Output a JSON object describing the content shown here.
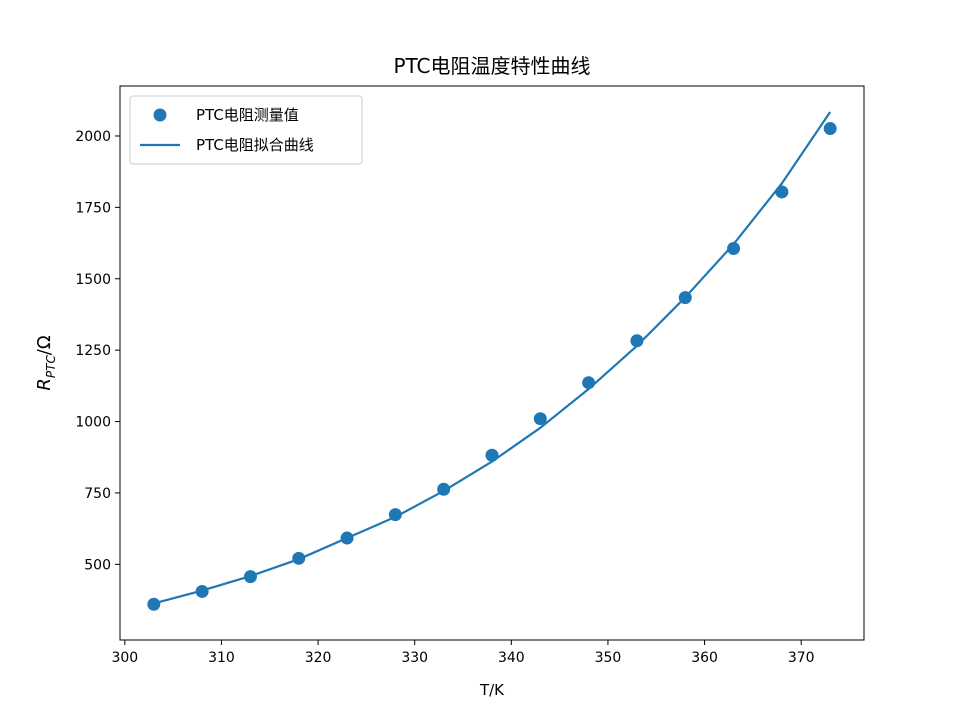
{
  "chart_data": {
    "type": "scatter",
    "title": "PTC电阻温度特性曲线",
    "xlabel": "T/K",
    "ylabel": "R_PTC/Ω",
    "ylabel_main": "R",
    "ylabel_sub": "PTC",
    "ylabel_unit": "/Ω",
    "xlim": [
      299.5,
      376.5
    ],
    "ylim": [
      235,
      2175
    ],
    "xticks": [
      300,
      310,
      320,
      330,
      340,
      350,
      360,
      370
    ],
    "yticks": [
      500,
      750,
      1000,
      1250,
      1500,
      1750,
      2000
    ],
    "grid": false,
    "legend_position": "upper-left",
    "series": [
      {
        "name": "PTC电阻测量值",
        "kind": "scatter",
        "color": "#1f77b4",
        "x": [
          303,
          308,
          313,
          318,
          323,
          328,
          333,
          338,
          343,
          348,
          353,
          358,
          363,
          368,
          373
        ],
        "y": [
          360,
          405,
          457,
          521,
          592,
          674,
          763,
          882,
          1010,
          1136,
          1283,
          1434,
          1606,
          1804,
          2026
        ]
      },
      {
        "name": "PTC电阻拟合曲线",
        "kind": "line",
        "color": "#1f77b4",
        "x": [
          303,
          308,
          313,
          318,
          323,
          328,
          333,
          338,
          343,
          348,
          353,
          358,
          363,
          368,
          373
        ],
        "y": [
          363,
          408,
          459,
          518,
          592,
          666,
          757,
          860,
          978,
          1114,
          1265,
          1435,
          1621,
          1834,
          2084
        ]
      }
    ]
  }
}
